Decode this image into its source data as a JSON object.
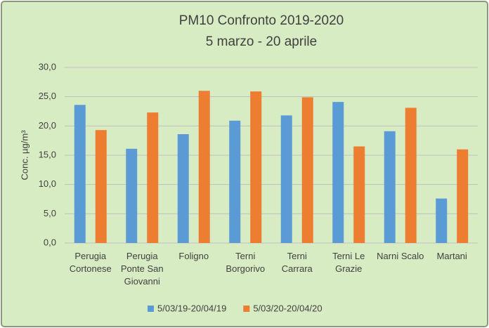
{
  "chart_data": {
    "type": "bar",
    "title": "PM10 Confronto 2019-2020",
    "subtitle": "5 marzo - 20 aprile",
    "y_label": "Conc.  µg/m³",
    "categories": [
      "Perugia Cortonese",
      "Perugia Ponte San Giovanni",
      "Foligno",
      "Terni Borgorivo",
      "Terni Carrara",
      "Terni Le Grazie",
      "Narni Scalo",
      "Martani"
    ],
    "series": [
      {
        "name": "5/03/19-20/04/19",
        "color": "#5b9bd5",
        "values": [
          23.6,
          16.1,
          18.6,
          20.9,
          21.8,
          24.1,
          19.1,
          7.6
        ]
      },
      {
        "name": "5/03/20-20/04/20",
        "color": "#ed7d31",
        "values": [
          19.3,
          22.3,
          26.0,
          25.9,
          24.9,
          16.5,
          23.1,
          16.0
        ]
      }
    ],
    "ylim": [
      0,
      30
    ],
    "yticks": [
      {
        "value": 0,
        "label": "0,0"
      },
      {
        "value": 5,
        "label": "5,0"
      },
      {
        "value": 10,
        "label": "10,0"
      },
      {
        "value": 15,
        "label": "15,0"
      },
      {
        "value": 20,
        "label": "20,0"
      },
      {
        "value": 25,
        "label": "25,0"
      },
      {
        "value": 30,
        "label": "30,0"
      }
    ],
    "grid": true,
    "legend": "bottom"
  }
}
